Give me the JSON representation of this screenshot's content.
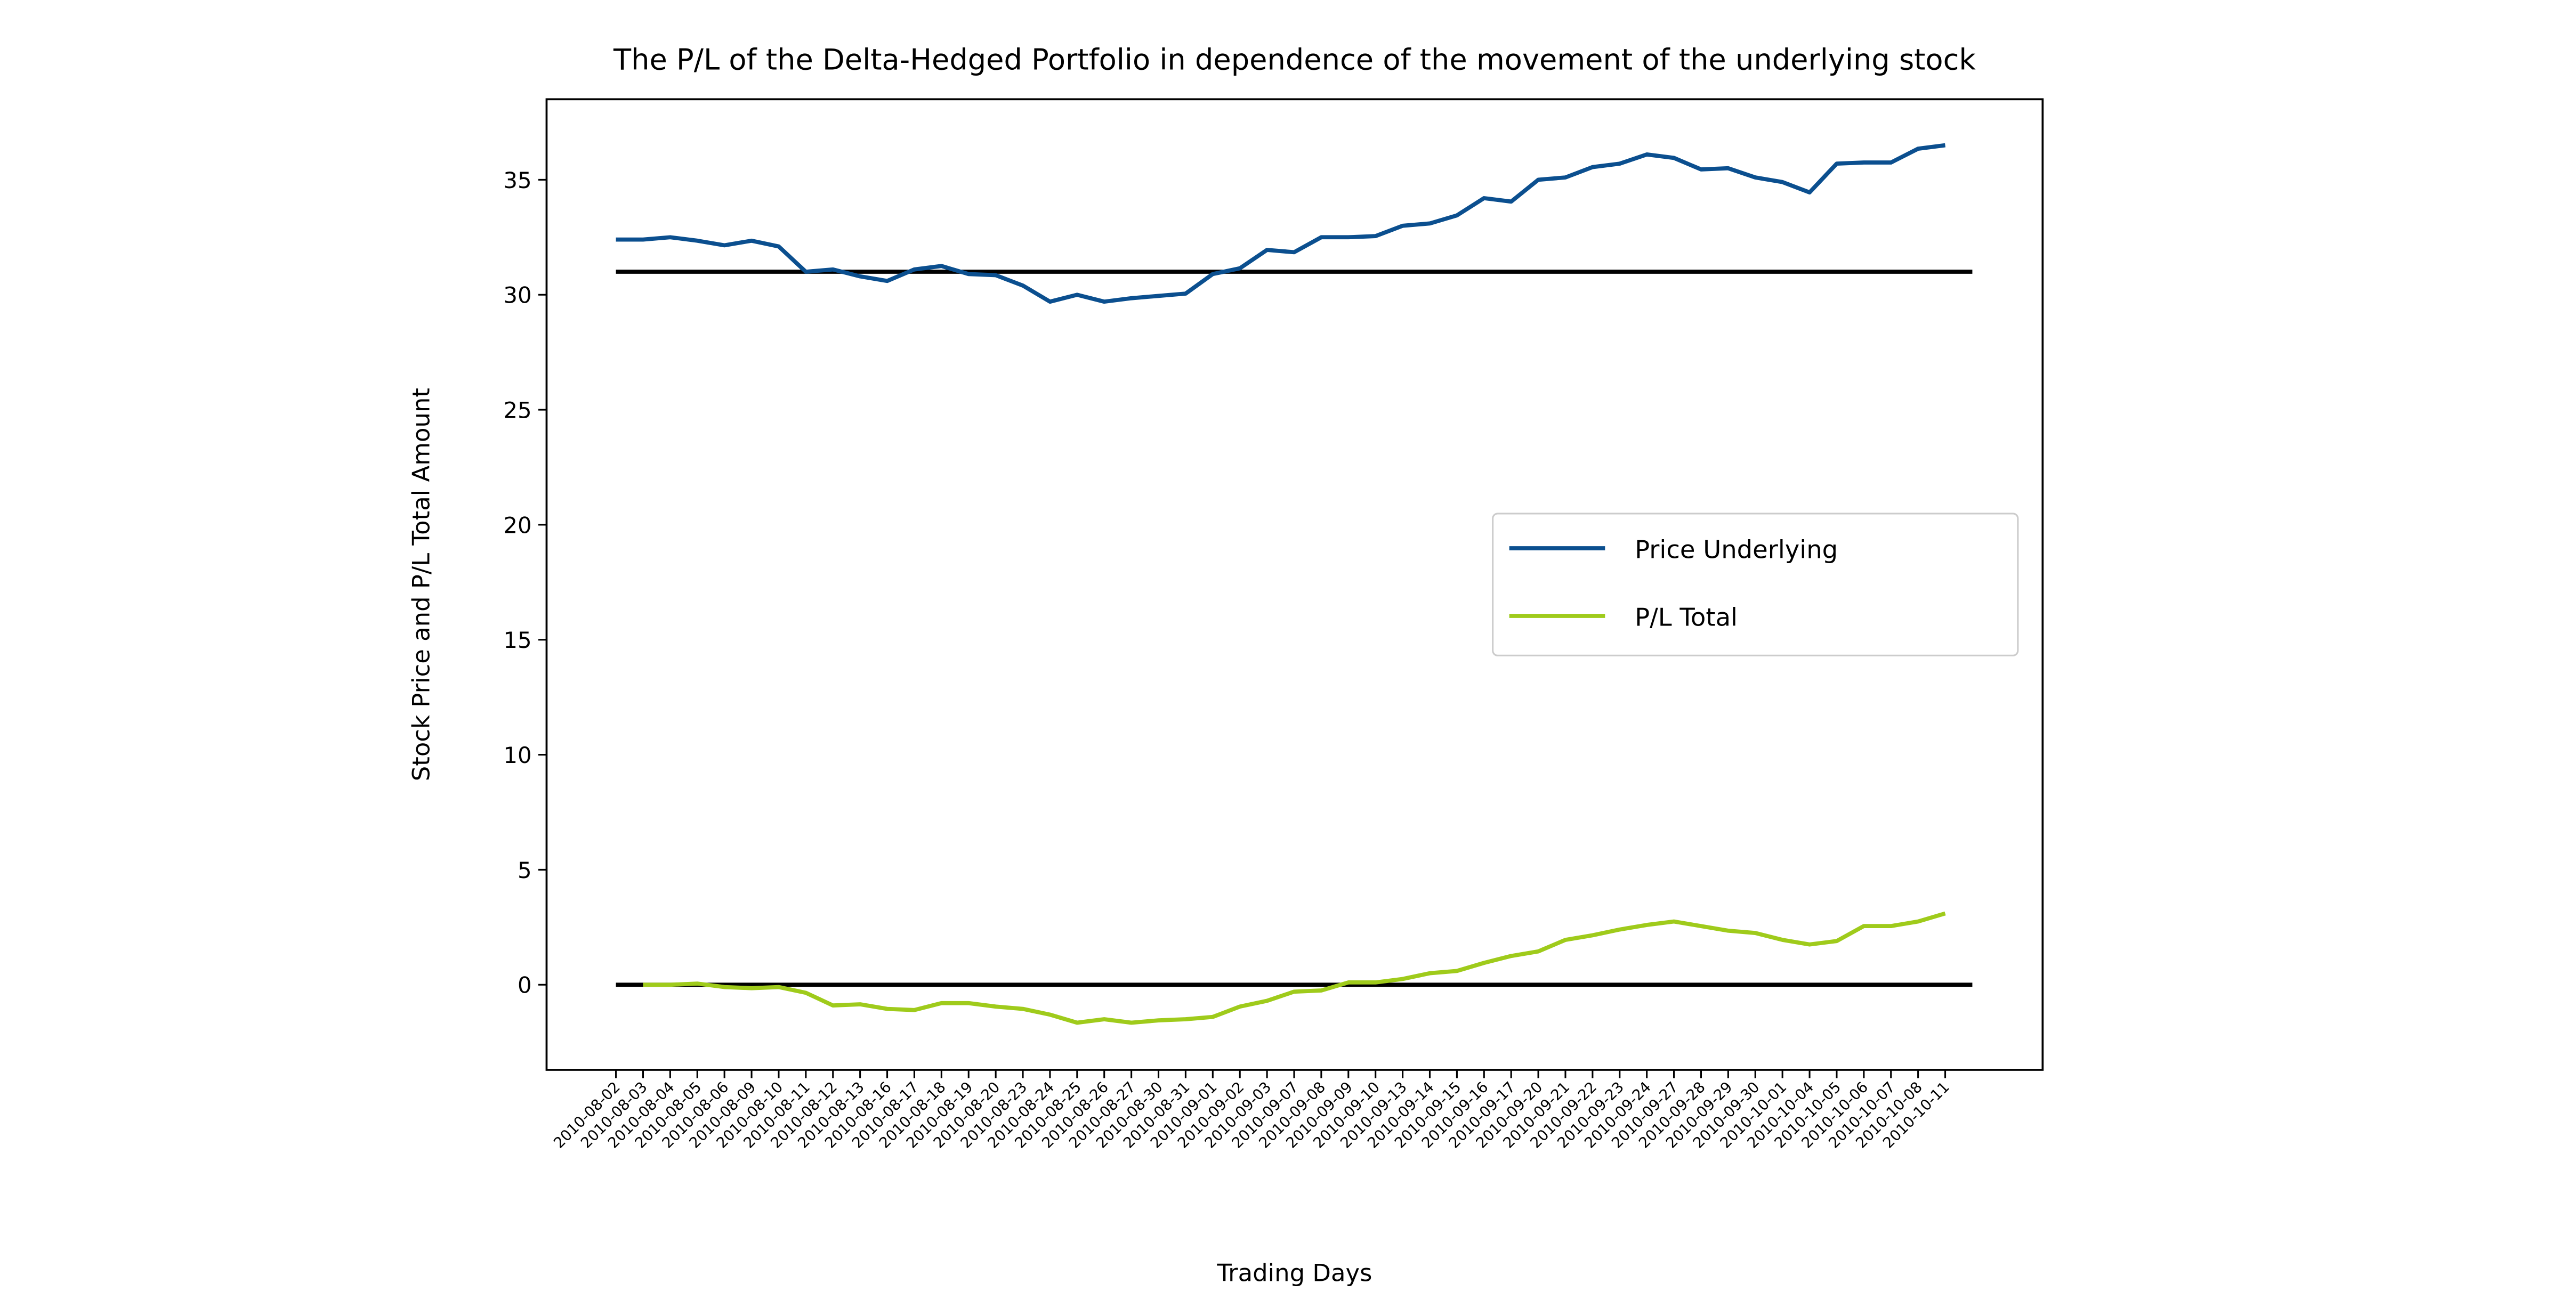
{
  "chart_data": {
    "type": "line",
    "title": "The P/L of the Delta-Hedged Portfolio in dependence of the movement of the underlying stock",
    "xlabel": "Trading Days",
    "ylabel": "Stock Price and P/L Total Amount",
    "categories": [
      "2010-08-02",
      "2010-08-03",
      "2010-08-04",
      "2010-08-05",
      "2010-08-06",
      "2010-08-09",
      "2010-08-10",
      "2010-08-11",
      "2010-08-12",
      "2010-08-13",
      "2010-08-16",
      "2010-08-17",
      "2010-08-18",
      "2010-08-19",
      "2010-08-20",
      "2010-08-23",
      "2010-08-24",
      "2010-08-25",
      "2010-08-26",
      "2010-08-27",
      "2010-08-30",
      "2010-08-31",
      "2010-09-01",
      "2010-09-02",
      "2010-09-03",
      "2010-09-07",
      "2010-09-08",
      "2010-09-09",
      "2010-09-10",
      "2010-09-13",
      "2010-09-14",
      "2010-09-15",
      "2010-09-16",
      "2010-09-17",
      "2010-09-20",
      "2010-09-21",
      "2010-09-22",
      "2010-09-23",
      "2010-09-24",
      "2010-09-27",
      "2010-09-28",
      "2010-09-29",
      "2010-09-30",
      "2010-10-01",
      "2010-10-04",
      "2010-10-05",
      "2010-10-06",
      "2010-10-07",
      "2010-10-08",
      "2010-10-11"
    ],
    "series": [
      {
        "name": "Price Underlying",
        "color": "#0b4f8f",
        "values": [
          32.4,
          32.4,
          32.5,
          32.35,
          32.15,
          32.35,
          32.1,
          31.0,
          31.1,
          30.8,
          30.6,
          31.1,
          31.25,
          30.9,
          30.85,
          30.4,
          29.7,
          30.0,
          29.7,
          29.85,
          29.95,
          30.05,
          30.9,
          31.15,
          31.95,
          31.85,
          32.5,
          32.5,
          32.55,
          33.0,
          33.1,
          33.45,
          34.2,
          34.05,
          35.0,
          35.1,
          35.55,
          35.7,
          36.1,
          35.95,
          35.45,
          35.5,
          35.1,
          34.9,
          34.45,
          35.7,
          35.75,
          35.75,
          36.35,
          36.5
        ]
      },
      {
        "name": "P/L Total",
        "color": "#9fcb1b",
        "values": [
          null,
          0.0,
          0.0,
          0.05,
          -0.1,
          -0.15,
          -0.1,
          -0.35,
          -0.9,
          -0.85,
          -1.05,
          -1.1,
          -0.8,
          -0.8,
          -0.95,
          -1.05,
          -1.3,
          -1.65,
          -1.5,
          -1.65,
          -1.55,
          -1.5,
          -1.4,
          -0.95,
          -0.7,
          -0.3,
          -0.25,
          0.1,
          0.1,
          0.25,
          0.5,
          0.6,
          0.95,
          1.25,
          1.45,
          1.95,
          2.15,
          2.4,
          2.6,
          2.75,
          2.55,
          2.35,
          2.25,
          1.95,
          1.75,
          1.9,
          2.55,
          2.55,
          2.75,
          3.1
        ]
      }
    ],
    "hlines": [
      {
        "y": 31,
        "color": "#000000"
      },
      {
        "y": 0,
        "color": "#000000"
      }
    ],
    "ylim": [
      -3.7,
      38.5
    ],
    "yticks": [
      0,
      5,
      10,
      15,
      20,
      25,
      30,
      35
    ],
    "legend": "center right"
  }
}
